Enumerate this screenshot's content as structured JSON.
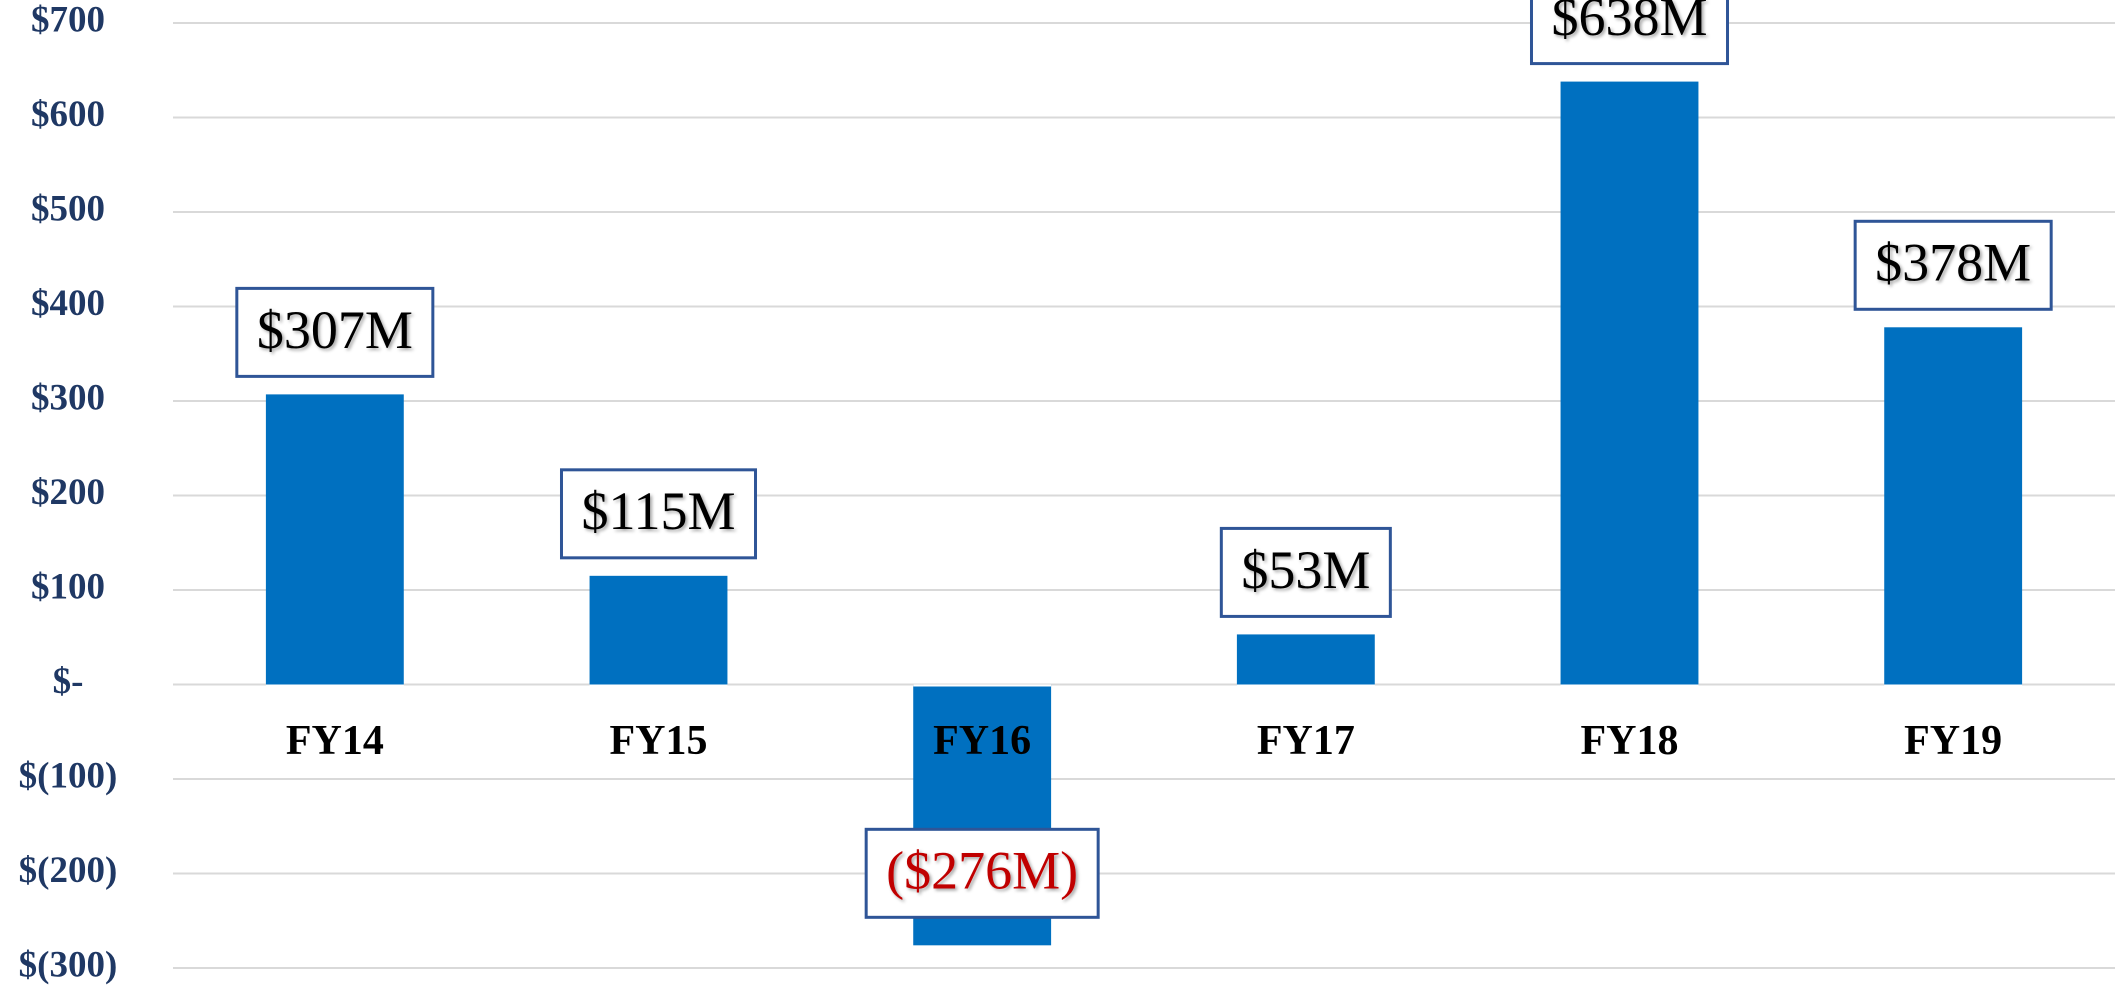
{
  "chart_data": {
    "type": "bar",
    "categories": [
      "FY14",
      "FY15",
      "FY16",
      "FY17",
      "FY18",
      "FY19"
    ],
    "values": [
      307,
      115,
      -276,
      53,
      638,
      378
    ],
    "value_labels": [
      "$307M",
      "$115M",
      "($276M)",
      "$53M",
      "$638M",
      "$378M"
    ],
    "color": "#0070c0",
    "label_color": "#000000",
    "negative_label_color": "#c00000",
    "ylim": [
      -300,
      700
    ],
    "yticks": [
      {
        "value": 700,
        "label": "$700"
      },
      {
        "value": 600,
        "label": "$600"
      },
      {
        "value": 500,
        "label": "$500"
      },
      {
        "value": 400,
        "label": "$400"
      },
      {
        "value": 300,
        "label": "$300"
      },
      {
        "value": 200,
        "label": "$200"
      },
      {
        "value": 100,
        "label": "$100"
      },
      {
        "value": 0,
        "label": "$-"
      },
      {
        "value": -100,
        "label": "$(100)"
      },
      {
        "value": -200,
        "label": "$(200)"
      },
      {
        "value": -300,
        "label": "$(300)"
      }
    ],
    "grid": true
  }
}
